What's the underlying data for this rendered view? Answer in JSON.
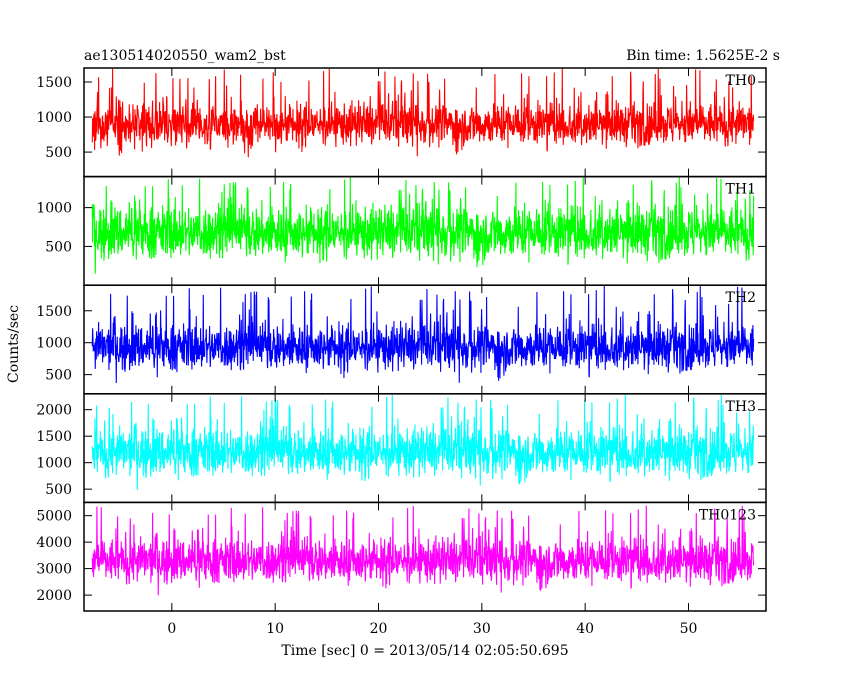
{
  "header": {
    "title": "ae130514020550_wam2_bst",
    "bin_time": "Bin time: 1.5625E-2 s"
  },
  "chart_data": {
    "type": "line",
    "xlabel": "Time [sec] 0 = 2013/05/14 02:05:50.695",
    "ylabel": "Counts/sec",
    "xlim": [
      -8.5,
      57.5
    ],
    "x_ticks": [
      0,
      10,
      20,
      30,
      40,
      50
    ],
    "x_data_range": [
      -7.7,
      56.3
    ],
    "panels": [
      {
        "name": "TH0",
        "color": "#ff0000",
        "ylim": [
          150,
          1700
        ],
        "y_ticks": [
          500,
          1000,
          1500
        ],
        "mean": 900,
        "spread": 150,
        "spike_max": 1700
      },
      {
        "name": "TH1",
        "color": "#00ff00",
        "ylim": [
          0,
          1400
        ],
        "y_ticks": [
          500,
          1000
        ],
        "mean": 680,
        "spread": 170,
        "spike_max": 1400
      },
      {
        "name": "TH2",
        "color": "#0000ff",
        "ylim": [
          200,
          1900
        ],
        "y_ticks": [
          500,
          1000,
          1500
        ],
        "mean": 930,
        "spread": 180,
        "spike_max": 1900
      },
      {
        "name": "TH3",
        "color": "#00ffff",
        "ylim": [
          250,
          2300
        ],
        "y_ticks": [
          500,
          1000,
          1500,
          2000
        ],
        "mean": 1200,
        "spread": 230,
        "spike_max": 2300
      },
      {
        "name": "TH0123",
        "color": "#ff00ff",
        "ylim": [
          1400,
          5500
        ],
        "y_ticks": [
          2000,
          3000,
          4000,
          5000
        ],
        "mean": 3300,
        "spread": 420,
        "spike_max": 5400
      }
    ]
  }
}
